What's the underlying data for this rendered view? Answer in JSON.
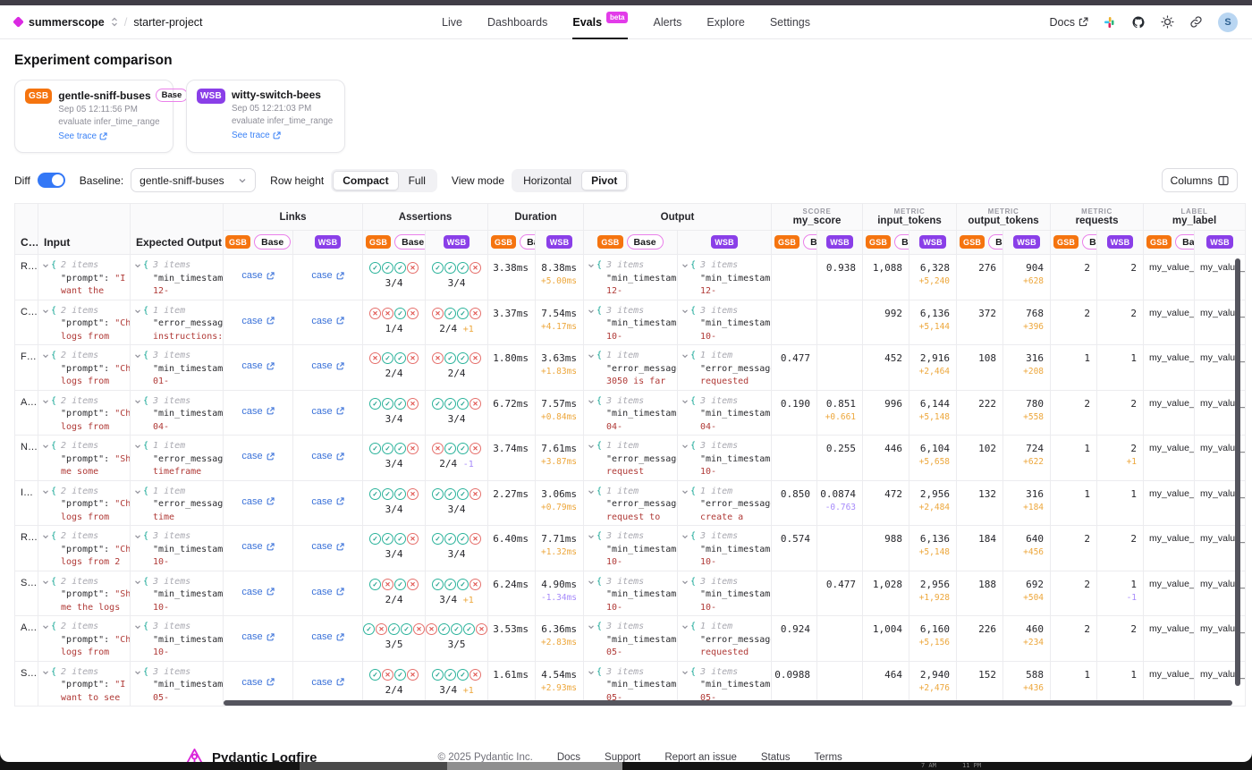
{
  "nav": {
    "org": "summerscope",
    "project": "starter-project",
    "tabs": [
      {
        "label": "Live"
      },
      {
        "label": "Dashboards"
      },
      {
        "label": "Evals"
      },
      {
        "label": "Alerts"
      },
      {
        "label": "Explore"
      },
      {
        "label": "Settings"
      }
    ],
    "active_tab": "Evals",
    "beta_label": "beta",
    "docs_label": "Docs",
    "avatar_initial": "S"
  },
  "header": {
    "title": "Experiment comparison"
  },
  "experiments": [
    {
      "abbr": "GSB",
      "name": "gentle-sniff-buses",
      "base_label": "Base",
      "timestamp": "Sep 05 12:11:56 PM",
      "task": "evaluate infer_time_range",
      "trace_label": "See trace",
      "color": "#f5740f"
    },
    {
      "abbr": "WSB",
      "name": "witty-switch-bees",
      "timestamp": "Sep 05 12:21:03 PM",
      "task": "evaluate infer_time_range",
      "trace_label": "See trace",
      "color": "#8a3fe8"
    }
  ],
  "controls": {
    "diff_label": "Diff",
    "diff_on": true,
    "baseline_label": "Baseline:",
    "baseline_value": "gentle-sniff-buses",
    "row_height_label": "Row height",
    "row_height_options": [
      "Compact",
      "Full"
    ],
    "row_height_selected": "Compact",
    "view_mode_label": "View mode",
    "view_mode_options": [
      "Horizontal",
      "Pivot"
    ],
    "view_mode_selected": "Pivot",
    "columns_button": "Columns"
  },
  "table": {
    "static_cols": [
      "C…",
      "Input",
      "Expected Output"
    ],
    "groups": [
      {
        "kicker": "",
        "label": "Links"
      },
      {
        "kicker": "",
        "label": "Assertions"
      },
      {
        "kicker": "",
        "label": "Duration"
      },
      {
        "kicker": "",
        "label": "Output"
      },
      {
        "kicker": "SCORE",
        "label": "my_score"
      },
      {
        "kicker": "METRIC",
        "label": "input_tokens"
      },
      {
        "kicker": "METRIC",
        "label": "output_tokens"
      },
      {
        "kicker": "METRIC",
        "label": "requests"
      },
      {
        "kicker": "LABEL",
        "label": "my_label"
      }
    ],
    "badges": {
      "gsb": "GSB",
      "base": "Base",
      "wsb": "WSB"
    },
    "link_text": "case",
    "rows": [
      {
        "case": "R…",
        "input": {
          "count": "2 items",
          "key": "\"prompt\":",
          "frag": "\"I",
          "line2": "want the"
        },
        "expected": {
          "count": "3 items",
          "key": "\"min_timestamp",
          "frag": "",
          "line2": "12-"
        },
        "assert_gsb": {
          "icons": "cccx",
          "score": "3/4",
          "delta": "",
          "neg": false
        },
        "assert_wsb": {
          "icons": "cccx",
          "score": "3/4",
          "delta": "",
          "neg": false
        },
        "dur_gsb": "3.38ms",
        "dur_wsb": {
          "v": "8.38ms",
          "d": "+5.00ms",
          "neg": false
        },
        "out_gsb": {
          "count": "3 items",
          "key": "\"min_timestamp",
          "frag": "",
          "line2": "12-"
        },
        "out_wsb": {
          "count": "3 items",
          "key": "\"min_timestamp",
          "frag": "",
          "line2": "12-"
        },
        "score_gsb": "",
        "score_wsb": {
          "v": "0.938",
          "d": "",
          "neg": false
        },
        "tokin_gsb": "1,088",
        "tokin_wsb": {
          "v": "6,328",
          "d": "+5,240",
          "neg": false
        },
        "tokout_gsb": "276",
        "tokout_wsb": {
          "v": "904",
          "d": "+628",
          "neg": false
        },
        "req_gsb": "2",
        "req_wsb": {
          "v": "2",
          "d": "",
          "neg": false
        },
        "label_gsb": "my_value_",
        "label_wsb": "my_value_"
      },
      {
        "case": "C…",
        "input": {
          "count": "2 items",
          "key": "\"prompt\":",
          "frag": "\"Ch",
          "line2": "logs from"
        },
        "expected": {
          "count": "1 item",
          "key": "\"error_message",
          "frag": "",
          "line2": "instructions:"
        },
        "assert_gsb": {
          "icons": "xxcx",
          "score": "1/4",
          "delta": "",
          "neg": false
        },
        "assert_wsb": {
          "icons": "xccx",
          "score": "2/4",
          "delta": "+1",
          "neg": false
        },
        "dur_gsb": "3.37ms",
        "dur_wsb": {
          "v": "7.54ms",
          "d": "+4.17ms",
          "neg": false
        },
        "out_gsb": {
          "count": "3 items",
          "key": "\"min_timestamp",
          "frag": "",
          "line2": "10-"
        },
        "out_wsb": {
          "count": "3 items",
          "key": "\"min_timestamp",
          "frag": "",
          "line2": "10-"
        },
        "score_gsb": "",
        "score_wsb": {
          "v": "",
          "d": "",
          "neg": false
        },
        "tokin_gsb": "992",
        "tokin_wsb": {
          "v": "6,136",
          "d": "+5,144",
          "neg": false
        },
        "tokout_gsb": "372",
        "tokout_wsb": {
          "v": "768",
          "d": "+396",
          "neg": false
        },
        "req_gsb": "2",
        "req_wsb": {
          "v": "2",
          "d": "",
          "neg": false
        },
        "label_gsb": "my_value_",
        "label_wsb": "my_value_"
      },
      {
        "case": "F…",
        "input": {
          "count": "2 items",
          "key": "\"prompt\":",
          "frag": "\"Ch",
          "line2": "logs from"
        },
        "expected": {
          "count": "3 items",
          "key": "\"min_timestamp",
          "frag": "",
          "line2": "01-"
        },
        "assert_gsb": {
          "icons": "xccx",
          "score": "2/4",
          "delta": "",
          "neg": false
        },
        "assert_wsb": {
          "icons": "xccx",
          "score": "2/4",
          "delta": "",
          "neg": false
        },
        "dur_gsb": "1.80ms",
        "dur_wsb": {
          "v": "3.63ms",
          "d": "+1.83ms",
          "neg": false
        },
        "out_gsb": {
          "count": "1 item",
          "key": "\"error_message",
          "frag": "",
          "line2": "3050 is far"
        },
        "out_wsb": {
          "count": "1 item",
          "key": "\"error_message",
          "frag": "",
          "line2": "requested"
        },
        "score_gsb": "0.477",
        "score_wsb": {
          "v": "",
          "d": "",
          "neg": false
        },
        "tokin_gsb": "452",
        "tokin_wsb": {
          "v": "2,916",
          "d": "+2,464",
          "neg": false
        },
        "tokout_gsb": "108",
        "tokout_wsb": {
          "v": "316",
          "d": "+208",
          "neg": false
        },
        "req_gsb": "1",
        "req_wsb": {
          "v": "1",
          "d": "",
          "neg": false
        },
        "label_gsb": "my_value_",
        "label_wsb": "my_value_"
      },
      {
        "case": "A…",
        "input": {
          "count": "2 items",
          "key": "\"prompt\":",
          "frag": "\"Ch",
          "line2": "logs from"
        },
        "expected": {
          "count": "3 items",
          "key": "\"min_timestamp",
          "frag": "",
          "line2": "04-"
        },
        "assert_gsb": {
          "icons": "cccx",
          "score": "3/4",
          "delta": "",
          "neg": false
        },
        "assert_wsb": {
          "icons": "cccx",
          "score": "3/4",
          "delta": "",
          "neg": false
        },
        "dur_gsb": "6.72ms",
        "dur_wsb": {
          "v": "7.57ms",
          "d": "+0.84ms",
          "neg": false
        },
        "out_gsb": {
          "count": "3 items",
          "key": "\"min_timestamp",
          "frag": "",
          "line2": "04-"
        },
        "out_wsb": {
          "count": "3 items",
          "key": "\"min_timestamp",
          "frag": "",
          "line2": "04-"
        },
        "score_gsb": "0.190",
        "score_wsb": {
          "v": "0.851",
          "d": "+0.661",
          "neg": false
        },
        "tokin_gsb": "996",
        "tokin_wsb": {
          "v": "6,144",
          "d": "+5,148",
          "neg": false
        },
        "tokout_gsb": "222",
        "tokout_wsb": {
          "v": "780",
          "d": "+558",
          "neg": false
        },
        "req_gsb": "2",
        "req_wsb": {
          "v": "2",
          "d": "",
          "neg": false
        },
        "label_gsb": "my_value_",
        "label_wsb": "my_value_"
      },
      {
        "case": "N…",
        "input": {
          "count": "2 items",
          "key": "\"prompt\":",
          "frag": "\"Sh",
          "line2": "me some"
        },
        "expected": {
          "count": "1 item",
          "key": "\"error_message",
          "frag": "",
          "line2": "timeframe"
        },
        "assert_gsb": {
          "icons": "cccx",
          "score": "3/4",
          "delta": "",
          "neg": false
        },
        "assert_wsb": {
          "icons": "xccx",
          "score": "2/4",
          "delta": "-1",
          "neg": true
        },
        "dur_gsb": "3.74ms",
        "dur_wsb": {
          "v": "7.61ms",
          "d": "+3.87ms",
          "neg": false
        },
        "out_gsb": {
          "count": "1 item",
          "key": "\"error_message",
          "frag": "",
          "line2": "request"
        },
        "out_wsb": {
          "count": "3 items",
          "key": "\"min_timestamp",
          "frag": "",
          "line2": "10-"
        },
        "score_gsb": "",
        "score_wsb": {
          "v": "0.255",
          "d": "",
          "neg": false
        },
        "tokin_gsb": "446",
        "tokin_wsb": {
          "v": "6,104",
          "d": "+5,658",
          "neg": false
        },
        "tokout_gsb": "102",
        "tokout_wsb": {
          "v": "724",
          "d": "+622",
          "neg": false
        },
        "req_gsb": "1",
        "req_wsb": {
          "v": "2",
          "d": "+1",
          "neg": false
        },
        "label_gsb": "my_value_",
        "label_wsb": "my_value_"
      },
      {
        "case": "I…",
        "input": {
          "count": "2 items",
          "key": "\"prompt\":",
          "frag": "\"Ch",
          "line2": "logs from"
        },
        "expected": {
          "count": "1 item",
          "key": "\"error_message",
          "frag": "",
          "line2": "time"
        },
        "assert_gsb": {
          "icons": "cccx",
          "score": "3/4",
          "delta": "",
          "neg": false
        },
        "assert_wsb": {
          "icons": "cccx",
          "score": "3/4",
          "delta": "",
          "neg": false
        },
        "dur_gsb": "2.27ms",
        "dur_wsb": {
          "v": "3.06ms",
          "d": "+0.79ms",
          "neg": false
        },
        "out_gsb": {
          "count": "1 item",
          "key": "\"error_message",
          "frag": "",
          "line2": "request to"
        },
        "out_wsb": {
          "count": "1 item",
          "key": "\"error_message",
          "frag": "",
          "line2": "create a"
        },
        "score_gsb": "0.850",
        "score_wsb": {
          "v": "0.0874",
          "d": "-0.763",
          "neg": true
        },
        "tokin_gsb": "472",
        "tokin_wsb": {
          "v": "2,956",
          "d": "+2,484",
          "neg": false
        },
        "tokout_gsb": "132",
        "tokout_wsb": {
          "v": "316",
          "d": "+184",
          "neg": false
        },
        "req_gsb": "1",
        "req_wsb": {
          "v": "1",
          "d": "",
          "neg": false
        },
        "label_gsb": "my_value_",
        "label_wsb": "my_value_"
      },
      {
        "case": "R…",
        "input": {
          "count": "2 items",
          "key": "\"prompt\":",
          "frag": "\"Ch",
          "line2": "logs from 2"
        },
        "expected": {
          "count": "3 items",
          "key": "\"min_timestamp",
          "frag": "",
          "line2": "10-"
        },
        "assert_gsb": {
          "icons": "cccx",
          "score": "3/4",
          "delta": "",
          "neg": false
        },
        "assert_wsb": {
          "icons": "cccx",
          "score": "3/4",
          "delta": "",
          "neg": false
        },
        "dur_gsb": "6.40ms",
        "dur_wsb": {
          "v": "7.71ms",
          "d": "+1.32ms",
          "neg": false
        },
        "out_gsb": {
          "count": "3 items",
          "key": "\"min_timestamp",
          "frag": "",
          "line2": "10-"
        },
        "out_wsb": {
          "count": "3 items",
          "key": "\"min_timestamp",
          "frag": "",
          "line2": "10-"
        },
        "score_gsb": "0.574",
        "score_wsb": {
          "v": "",
          "d": "",
          "neg": false
        },
        "tokin_gsb": "988",
        "tokin_wsb": {
          "v": "6,136",
          "d": "+5,148",
          "neg": false
        },
        "tokout_gsb": "184",
        "tokout_wsb": {
          "v": "640",
          "d": "+456",
          "neg": false
        },
        "req_gsb": "2",
        "req_wsb": {
          "v": "2",
          "d": "",
          "neg": false
        },
        "label_gsb": "my_value_",
        "label_wsb": "my_value_"
      },
      {
        "case": "S…",
        "input": {
          "count": "2 items",
          "key": "\"prompt\":",
          "frag": "\"Sh",
          "line2": "me the logs"
        },
        "expected": {
          "count": "3 items",
          "key": "\"min_timestamp",
          "frag": "",
          "line2": "10-"
        },
        "assert_gsb": {
          "icons": "cxcx",
          "score": "2/4",
          "delta": "",
          "neg": false
        },
        "assert_wsb": {
          "icons": "cccx",
          "score": "3/4",
          "delta": "+1",
          "neg": false
        },
        "dur_gsb": "6.24ms",
        "dur_wsb": {
          "v": "4.90ms",
          "d": "-1.34ms",
          "neg": true
        },
        "out_gsb": {
          "count": "3 items",
          "key": "\"min_timestamp",
          "frag": "",
          "line2": "10-"
        },
        "out_wsb": {
          "count": "3 items",
          "key": "\"min_timestamp",
          "frag": "",
          "line2": "10-"
        },
        "score_gsb": "",
        "score_wsb": {
          "v": "0.477",
          "d": "",
          "neg": false
        },
        "tokin_gsb": "1,028",
        "tokin_wsb": {
          "v": "2,956",
          "d": "+1,928",
          "neg": false
        },
        "tokout_gsb": "188",
        "tokout_wsb": {
          "v": "692",
          "d": "+504",
          "neg": false
        },
        "req_gsb": "2",
        "req_wsb": {
          "v": "1",
          "d": "-1",
          "neg": true
        },
        "label_gsb": "my_value_",
        "label_wsb": "my_value_"
      },
      {
        "case": "A…",
        "input": {
          "count": "2 items",
          "key": "\"prompt\":",
          "frag": "\"Ch",
          "line2": "logs from"
        },
        "expected": {
          "count": "3 items",
          "key": "\"min_timestamp",
          "frag": "",
          "line2": "10-"
        },
        "assert_gsb": {
          "icons": "cxccx",
          "score": "3/5",
          "delta": "",
          "neg": false
        },
        "assert_wsb": {
          "icons": "xcccx",
          "score": "3/5",
          "delta": "",
          "neg": false
        },
        "dur_gsb": "3.53ms",
        "dur_wsb": {
          "v": "6.36ms",
          "d": "+2.83ms",
          "neg": false
        },
        "out_gsb": {
          "count": "3 items",
          "key": "\"min_timestamp",
          "frag": "",
          "line2": "05-"
        },
        "out_wsb": {
          "count": "1 item",
          "key": "\"error_message",
          "frag": "",
          "line2": "requested"
        },
        "score_gsb": "0.924",
        "score_wsb": {
          "v": "",
          "d": "",
          "neg": false
        },
        "tokin_gsb": "1,004",
        "tokin_wsb": {
          "v": "6,160",
          "d": "+5,156",
          "neg": false
        },
        "tokout_gsb": "226",
        "tokout_wsb": {
          "v": "460",
          "d": "+234",
          "neg": false
        },
        "req_gsb": "2",
        "req_wsb": {
          "v": "2",
          "d": "",
          "neg": false
        },
        "label_gsb": "my_value_",
        "label_wsb": "my_value_"
      },
      {
        "case": "S…",
        "input": {
          "count": "2 items",
          "key": "\"prompt\":",
          "frag": "\"I",
          "line2": "want to see"
        },
        "expected": {
          "count": "3 items",
          "key": "\"min_timestamp",
          "frag": "",
          "line2": "05-"
        },
        "assert_gsb": {
          "icons": "cxcx",
          "score": "2/4",
          "delta": "",
          "neg": false
        },
        "assert_wsb": {
          "icons": "cccx",
          "score": "3/4",
          "delta": "+1",
          "neg": false
        },
        "dur_gsb": "1.61ms",
        "dur_wsb": {
          "v": "4.54ms",
          "d": "+2.93ms",
          "neg": false
        },
        "out_gsb": {
          "count": "3 items",
          "key": "\"min_timestamp",
          "frag": "",
          "line2": "05-"
        },
        "out_wsb": {
          "count": "3 items",
          "key": "\"min_timestamp",
          "frag": "",
          "line2": "05-"
        },
        "score_gsb": "0.0988",
        "score_wsb": {
          "v": "",
          "d": "",
          "neg": false
        },
        "tokin_gsb": "464",
        "tokin_wsb": {
          "v": "2,940",
          "d": "+2,476",
          "neg": false
        },
        "tokout_gsb": "152",
        "tokout_wsb": {
          "v": "588",
          "d": "+436",
          "neg": false
        },
        "req_gsb": "1",
        "req_wsb": {
          "v": "1",
          "d": "",
          "neg": false
        },
        "label_gsb": "my_value_",
        "label_wsb": "my_value_"
      }
    ]
  },
  "footer": {
    "brand": "Pydantic Logfire",
    "copyright": "© 2025 Pydantic Inc.",
    "links": [
      "Docs",
      "Support",
      "Report an issue",
      "Status",
      "Terms"
    ]
  },
  "taskbar": {
    "labels": [
      "7 AM",
      "11 PM"
    ]
  },
  "colors": {
    "brand_magenta": "#da29e2",
    "gsb_orange": "#f5740f",
    "wsb_purple": "#8a3fe8",
    "link_blue": "#3b72d9",
    "delta_positive": "#eda73c",
    "delta_negative": "#a78bfa",
    "check_green": "#1ea08c",
    "cross_red": "#e0524d",
    "code_red": "#b03a37",
    "toggle_blue": "#3478f6"
  }
}
